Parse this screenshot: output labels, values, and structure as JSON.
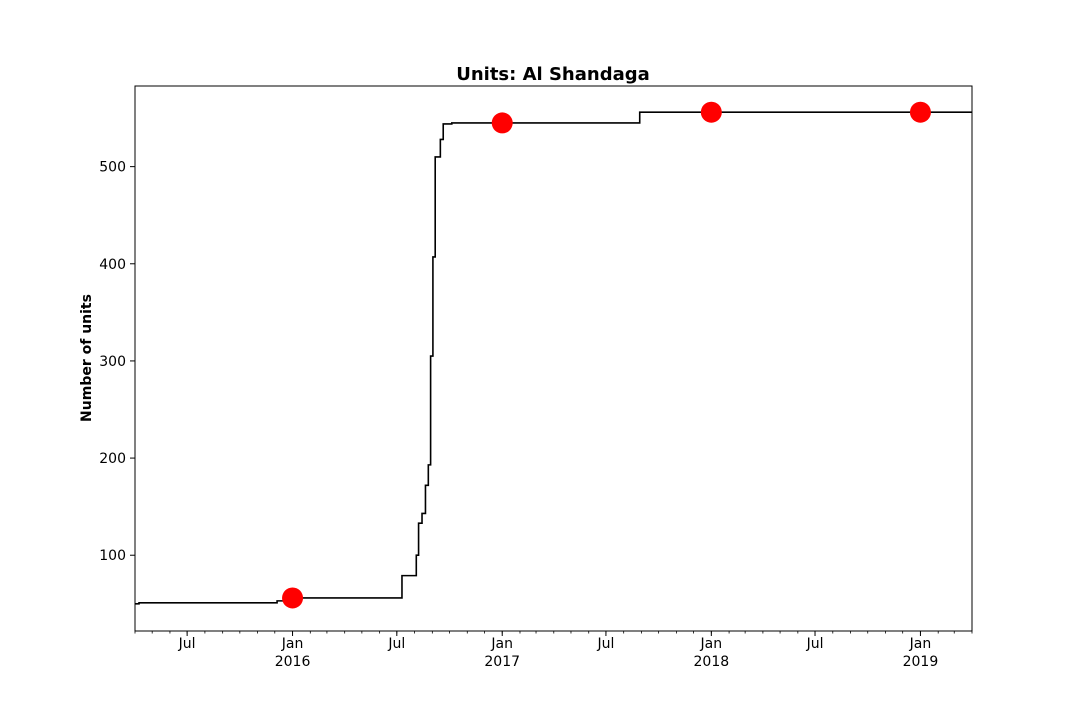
{
  "chart_data": {
    "type": "line",
    "title": "Units: Al Shandaga",
    "xlabel": "",
    "ylabel": "Number of units",
    "xlim": [
      "2015-04-01",
      "2019-04-01"
    ],
    "ylim": [
      22,
      583
    ],
    "grid": false,
    "legend": "none",
    "y_ticks": [
      100,
      200,
      300,
      400,
      500
    ],
    "x_ticks": [
      {
        "date": "2015-07-01",
        "label": "Jul",
        "year": ""
      },
      {
        "date": "2016-01-01",
        "label": "Jan",
        "year": "2016"
      },
      {
        "date": "2016-07-01",
        "label": "Jul",
        "year": ""
      },
      {
        "date": "2017-01-01",
        "label": "Jan",
        "year": "2017"
      },
      {
        "date": "2017-07-01",
        "label": "Jul",
        "year": ""
      },
      {
        "date": "2018-01-01",
        "label": "Jan",
        "year": "2018"
      },
      {
        "date": "2018-07-01",
        "label": "Jul",
        "year": ""
      },
      {
        "date": "2019-01-01",
        "label": "Jan",
        "year": "2019"
      }
    ],
    "series": [
      {
        "style": "step-line",
        "color": "#000000",
        "points": [
          [
            "2015-04-01",
            50
          ],
          [
            "2015-04-08",
            51
          ],
          [
            "2015-12-05",
            53
          ],
          [
            "2015-12-25",
            54
          ],
          [
            "2016-01-05",
            56
          ],
          [
            "2016-07-05",
            56
          ],
          [
            "2016-07-10",
            79
          ],
          [
            "2016-08-01",
            79
          ],
          [
            "2016-08-04",
            100
          ],
          [
            "2016-08-08",
            133
          ],
          [
            "2016-08-14",
            143
          ],
          [
            "2016-08-20",
            172
          ],
          [
            "2016-08-25",
            193
          ],
          [
            "2016-08-29",
            305
          ],
          [
            "2016-09-02",
            407
          ],
          [
            "2016-09-06",
            510
          ],
          [
            "2016-09-15",
            528
          ],
          [
            "2016-09-20",
            544
          ],
          [
            "2016-10-05",
            545
          ],
          [
            "2017-08-28",
            545
          ],
          [
            "2017-08-29",
            556
          ],
          [
            "2019-04-01",
            556
          ]
        ]
      },
      {
        "style": "markers",
        "color": "#ff0000",
        "points": [
          [
            "2016-01-01",
            56
          ],
          [
            "2017-01-01",
            545
          ],
          [
            "2018-01-01",
            556
          ],
          [
            "2019-01-01",
            556
          ]
        ]
      }
    ]
  }
}
